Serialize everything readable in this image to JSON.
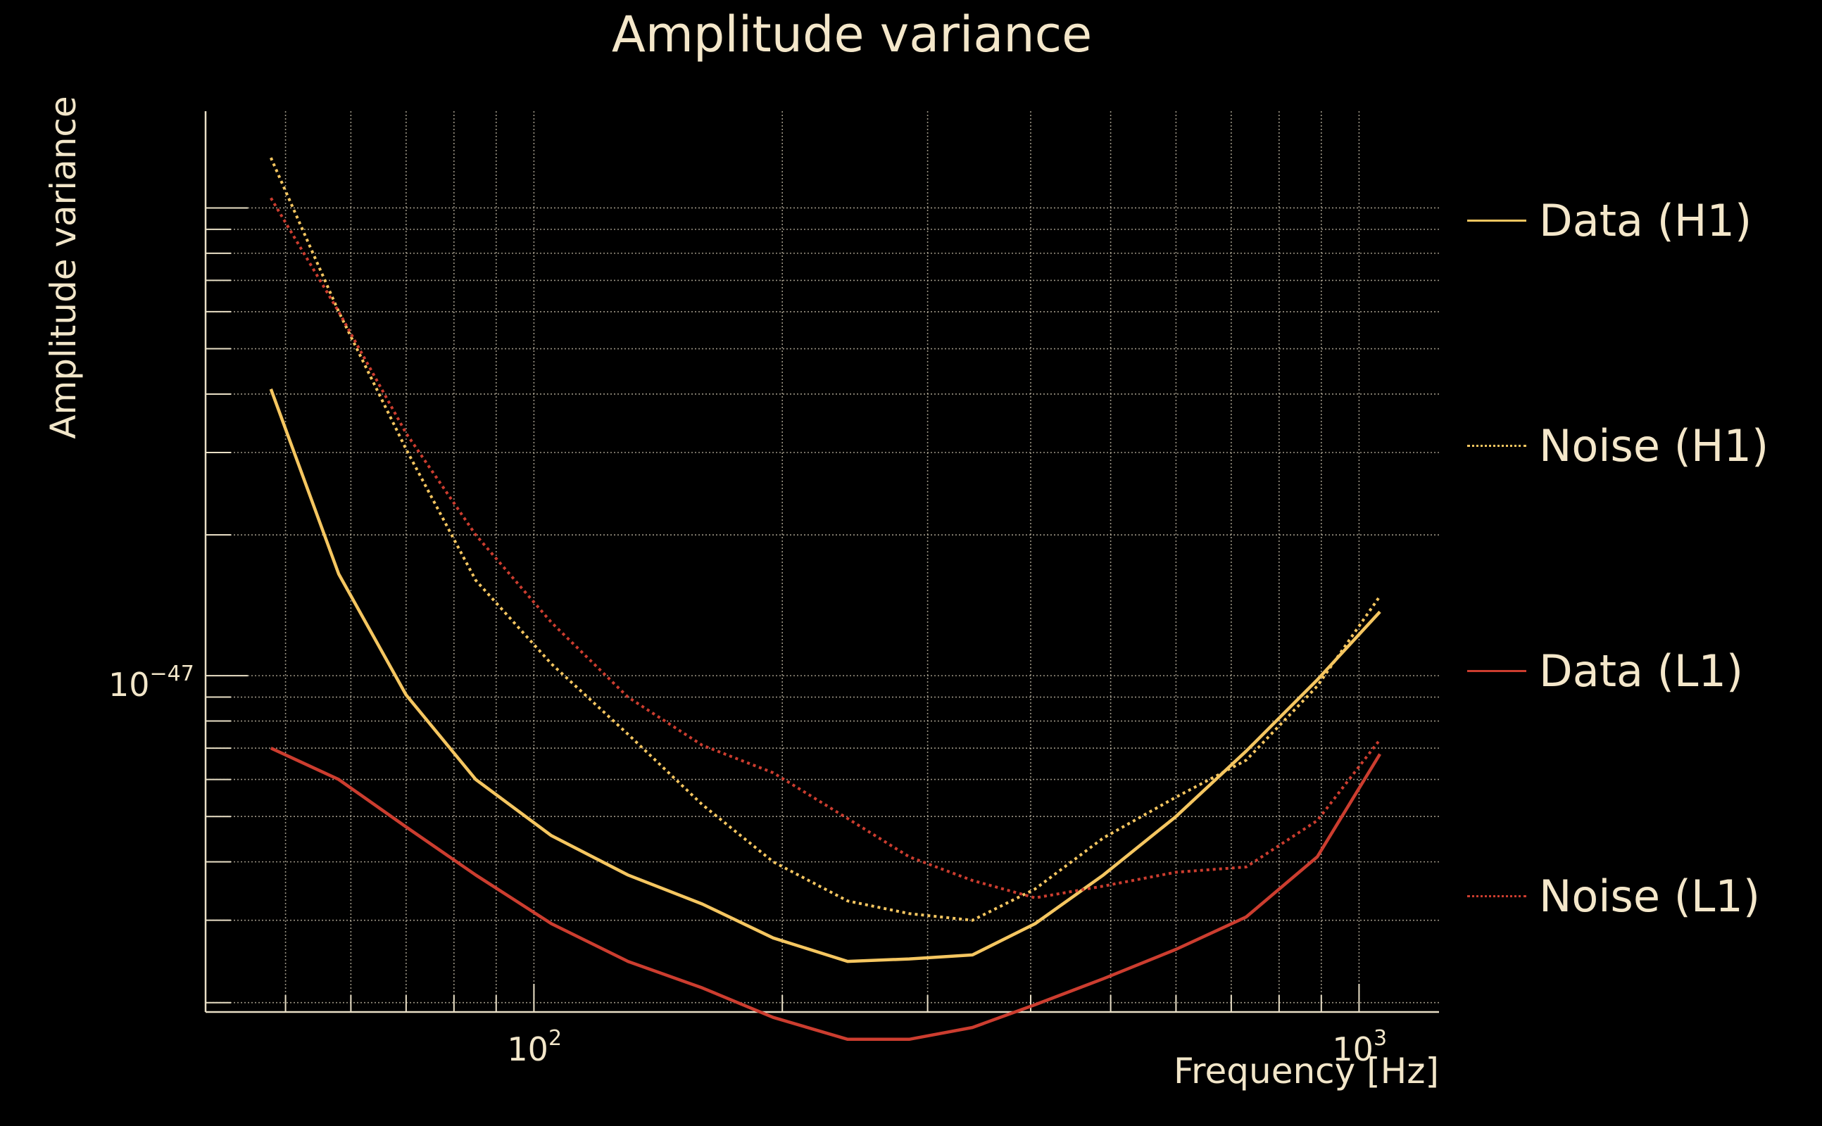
{
  "chart_data": {
    "type": "line",
    "title": "Amplitude variance",
    "xlabel": "Frequency [Hz]",
    "ylabel": "Amplitude variance",
    "xscale": "log",
    "yscale": "log",
    "xlim": [
      40,
      1250
    ],
    "ylim": [
      1.91e-48,
      1.61e-46
    ],
    "xticks": [
      {
        "base": "10",
        "exp": "2",
        "value": 100
      },
      {
        "base": "10",
        "exp": "3",
        "value": 1000
      }
    ],
    "yticks": [
      {
        "base": "10",
        "exp": "−47",
        "value": 1e-47
      }
    ],
    "grid": true,
    "legend_position": "right",
    "x": [
      48,
      58,
      70,
      85,
      105,
      130,
      160,
      195,
      240,
      285,
      340,
      405,
      490,
      600,
      730,
      890,
      1060
    ],
    "series": [
      {
        "name": "Data (H1)",
        "color": "#f5c660",
        "style": "solid",
        "values": [
          4.1e-47,
          1.65e-47,
          9.1e-48,
          6e-48,
          4.55e-48,
          3.75e-48,
          3.25e-48,
          2.75e-48,
          2.45e-48,
          2.48e-48,
          2.53e-48,
          2.95e-48,
          3.75e-48,
          5e-48,
          6.9e-48,
          9.8e-48,
          1.37e-47
        ]
      },
      {
        "name": "Noise (H1)",
        "color": "#f5c660",
        "style": "dotted",
        "values": [
          1.28e-46,
          6e-47,
          3.05e-47,
          1.6e-47,
          1.06e-47,
          7.5e-48,
          5.3e-48,
          4e-48,
          3.3e-48,
          3.1e-48,
          3e-48,
          3.5e-48,
          4.5e-48,
          5.5e-48,
          6.6e-48,
          9.5e-48,
          1.48e-47
        ]
      },
      {
        "name": "Data (L1)",
        "color": "#cc3d2f",
        "style": "solid",
        "values": [
          7e-48,
          6e-48,
          4.75e-48,
          3.75e-48,
          2.95e-48,
          2.45e-48,
          2.15e-48,
          1.86e-48,
          1.67e-48,
          1.67e-48,
          1.77e-48,
          1.98e-48,
          2.25e-48,
          2.6e-48,
          3.05e-48,
          4.1e-48,
          6.8e-48
        ]
      },
      {
        "name": "Noise (L1)",
        "color": "#cc3d2f",
        "style": "dotted",
        "values": [
          1.05e-46,
          6e-47,
          3.3e-47,
          2e-47,
          1.3e-47,
          9e-48,
          7.1e-48,
          6.2e-48,
          4.95e-48,
          4.1e-48,
          3.65e-48,
          3.35e-48,
          3.55e-48,
          3.8e-48,
          3.9e-48,
          4.9e-48,
          7.3e-48
        ]
      }
    ]
  }
}
